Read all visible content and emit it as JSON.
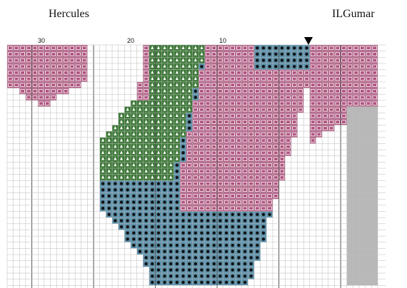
{
  "header": {
    "title": "Hercules",
    "author": "ILGumar"
  },
  "column_numbers": [
    30,
    20,
    10
  ]
}
